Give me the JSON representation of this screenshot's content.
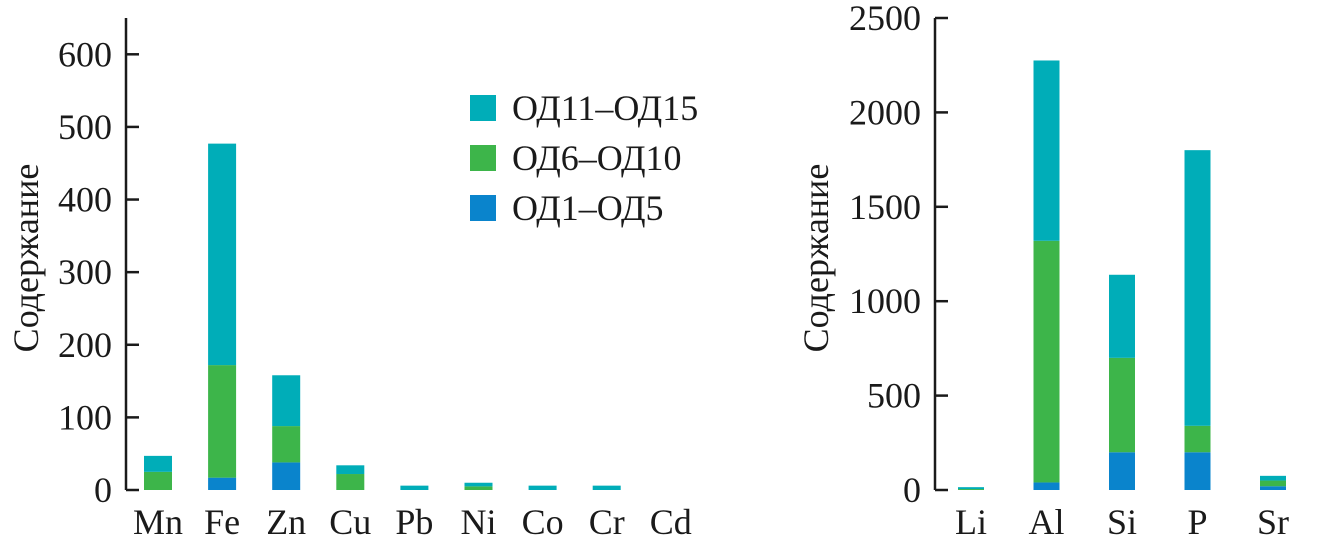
{
  "colors": {
    "ОД11–ОД15": "#00adb8",
    "ОД6–ОД10": "#3db54a",
    "ОД1–ОД5": "#0a84cc",
    "axis": "#1a1a1a"
  },
  "chart_data": [
    {
      "type": "bar",
      "stacked": true,
      "title": "",
      "xlabel": "",
      "ylabel": "Содержание",
      "ylim": [
        0,
        650
      ],
      "yticks": [
        0,
        100,
        200,
        300,
        400,
        500,
        600
      ],
      "categories": [
        "Mn",
        "Fe",
        "Zn",
        "Cu",
        "Pb",
        "Ni",
        "Co",
        "Cr",
        "Cd"
      ],
      "series": [
        {
          "name": "ОД1–ОД5",
          "color": "#0a84cc",
          "values": [
            0,
            17,
            38,
            0,
            0,
            0,
            0,
            0,
            0
          ]
        },
        {
          "name": "ОД6–ОД10",
          "color": "#3db54a",
          "values": [
            25,
            155,
            50,
            22,
            0,
            5,
            0,
            0,
            0
          ]
        },
        {
          "name": "ОД11–ОД15",
          "color": "#00adb8",
          "values": [
            22,
            305,
            70,
            12,
            6,
            5,
            6,
            6,
            0
          ]
        }
      ],
      "legend": {
        "placement": "top-right",
        "entries": [
          "ОД11–ОД15",
          "ОД6–ОД10",
          "ОД1–ОД5"
        ]
      },
      "grid": false
    },
    {
      "type": "bar",
      "stacked": true,
      "title": "",
      "xlabel": "",
      "ylabel": "Содержание",
      "ylim": [
        0,
        2500
      ],
      "yticks": [
        0,
        500,
        1000,
        1500,
        2000,
        2500
      ],
      "categories": [
        "Li",
        "Al",
        "Si",
        "P",
        "Sr"
      ],
      "series": [
        {
          "name": "ОД1–ОД5",
          "color": "#0a84cc",
          "values": [
            0,
            40,
            200,
            200,
            20
          ]
        },
        {
          "name": "ОД6–ОД10",
          "color": "#3db54a",
          "values": [
            5,
            1280,
            500,
            140,
            30
          ]
        },
        {
          "name": "ОД11–ОД15",
          "color": "#00adb8",
          "values": [
            10,
            955,
            440,
            1460,
            25
          ]
        }
      ],
      "grid": false
    }
  ]
}
